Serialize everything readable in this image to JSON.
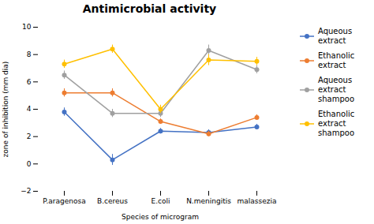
{
  "chart_data": {
    "type": "line",
    "title": "Antimicrobial activity",
    "xlabel": "Species of microgram",
    "ylabel": "zone of inhibition (mm dia)",
    "categories": [
      "P.aragenosa",
      "B.cereus",
      "E.coli",
      "N.meningitis",
      "malassezia"
    ],
    "ylim": [
      -2,
      10
    ],
    "yticks": [
      -2,
      0,
      2,
      4,
      6,
      8,
      10
    ],
    "grid": false,
    "legend": "right",
    "series": [
      {
        "name": "Aqueous\nextract",
        "color": "#4472c4",
        "marker": "o",
        "values": [
          3.8,
          0.3,
          2.4,
          2.3,
          2.7
        ],
        "errors": [
          0.3,
          0.4,
          0.2,
          0.2,
          0.2
        ]
      },
      {
        "name": "Ethanolic\nextract",
        "color": "#ed7d31",
        "marker": "o",
        "values": [
          5.2,
          5.2,
          3.1,
          2.2,
          3.4
        ],
        "errors": [
          0.3,
          0.3,
          0.2,
          0.2,
          0.2
        ]
      },
      {
        "name": "Aqueous\nextract\nshampoo",
        "color": "#a0a0a0",
        "marker": "o",
        "values": [
          6.5,
          3.7,
          3.7,
          8.3,
          6.9
        ],
        "errors": [
          0.3,
          0.3,
          0.3,
          0.4,
          0.3
        ]
      },
      {
        "name": "Ethanolic\nextract\nshampoo",
        "color": "#ffc000",
        "marker": "o",
        "values": [
          7.3,
          8.4,
          4.0,
          7.6,
          7.5
        ],
        "errors": [
          0.3,
          0.3,
          0.3,
          0.4,
          0.3
        ]
      }
    ]
  }
}
